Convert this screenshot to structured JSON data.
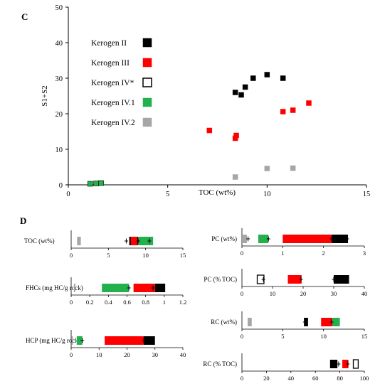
{
  "panel_c": {
    "letter": "C",
    "chart_data": {
      "type": "scatter",
      "xlabel": "TOC (wt%)",
      "ylabel": "S1+S2",
      "xlim": [
        0,
        15
      ],
      "ylim": [
        0,
        50
      ],
      "xticks": [
        0,
        5,
        10,
        15
      ],
      "yticks": [
        0,
        10,
        20,
        30,
        40,
        50
      ],
      "legend_position": "left",
      "series": [
        {
          "name": "Kerogen II",
          "color": "#000000",
          "marker": "filled-square",
          "x": [
            8.4,
            8.7,
            8.9,
            9.3,
            10.0,
            10.8
          ],
          "y": [
            26.0,
            25.3,
            27.5,
            30.0,
            31.0,
            30.0
          ]
        },
        {
          "name": "Kerogen III",
          "color": "#ff0000",
          "marker": "filled-square",
          "x": [
            7.1,
            8.4,
            8.45,
            10.8,
            11.3,
            12.1
          ],
          "y": [
            15.3,
            13.1,
            13.9,
            20.6,
            21.0,
            23.0
          ]
        },
        {
          "name": "Kerogen IV*",
          "color": "#000000",
          "marker": "open-square",
          "x": [],
          "y": []
        },
        {
          "name": "Kerogen IV.1",
          "color": "#22b14c",
          "marker": "filled-square",
          "x": [
            1.1,
            1.4,
            1.65
          ],
          "y": [
            0.3,
            0.4,
            0.5
          ]
        },
        {
          "name": "Kerogen IV.2",
          "color": "#a6a6a6",
          "marker": "filled-square",
          "x": [
            8.4,
            10.0,
            11.3
          ],
          "y": [
            2.2,
            4.6,
            4.7
          ]
        }
      ]
    }
  },
  "panel_d": {
    "letter": "D",
    "chart_data": [
      {
        "type": "bar",
        "orientation": "horizontal",
        "label": "TOC (wt%)",
        "xlim": [
          0,
          15
        ],
        "xticks": [
          0,
          5,
          10,
          15
        ],
        "segments": [
          {
            "color": "#a6a6a6",
            "start": 0.8,
            "end": 1.3
          },
          {
            "color": "#000000",
            "start": 7.8,
            "end": 9.0
          },
          {
            "color": "#ff0000",
            "start": 8.0,
            "end": 8.9
          },
          {
            "color": "#22b14c",
            "start": 9.0,
            "end": 11.0
          }
        ],
        "error_bars": [
          7.4,
          9.0,
          10.5
        ]
      },
      {
        "type": "bar",
        "orientation": "horizontal",
        "label": "FHCs (mg HC/g rock)",
        "xlim": [
          0,
          1.2
        ],
        "xticks": [
          0,
          0.2,
          0.4,
          0.6,
          0.8,
          1,
          1.2
        ],
        "segments": [
          {
            "color": "#a6a6a6",
            "start": 0.03,
            "end": 0.045
          },
          {
            "color": "#22b14c",
            "start": 0.33,
            "end": 0.62
          },
          {
            "color": "#ff0000",
            "start": 0.67,
            "end": 0.9
          },
          {
            "color": "#000000",
            "start": 0.9,
            "end": 1.01
          }
        ],
        "error_bars": [
          0.62,
          0.88
        ]
      },
      {
        "type": "bar",
        "orientation": "horizontal",
        "label": "HCP (mg HC/g rock)",
        "xlim": [
          0,
          40
        ],
        "xticks": [
          0,
          10,
          20,
          30,
          40
        ],
        "segments": [
          {
            "color": "#a6a6a6",
            "start": 0.2,
            "end": 0.6
          },
          {
            "color": "#22b14c",
            "start": 2.0,
            "end": 4.0
          },
          {
            "color": "#ff0000",
            "start": 12.0,
            "end": 26.0
          },
          {
            "color": "#000000",
            "start": 26.0,
            "end": 30.0
          }
        ],
        "error_bars": [
          4.0,
          26.0
        ]
      },
      {
        "type": "bar",
        "orientation": "horizontal",
        "label": "PC (wt%)",
        "xlim": [
          0,
          3
        ],
        "xticks": [
          0,
          1,
          2,
          3
        ],
        "segments": [
          {
            "color": "#a6a6a6",
            "start": 0.02,
            "end": 0.12
          },
          {
            "color": "#22b14c",
            "start": 0.4,
            "end": 0.65
          },
          {
            "color": "#ff0000",
            "start": 1.0,
            "end": 2.2
          },
          {
            "color": "#000000",
            "start": 2.2,
            "end": 2.6
          }
        ],
        "error_bars": [
          0.15,
          0.65,
          2.2,
          2.58
        ]
      },
      {
        "type": "bar",
        "orientation": "horizontal",
        "label": "PC (% TOC)",
        "xlim": [
          0,
          40
        ],
        "xticks": [
          0,
          10,
          20,
          30,
          40
        ],
        "segments": [
          {
            "color": "#ffffff",
            "outline": "#000000",
            "start": 5.0,
            "end": 7.2
          },
          {
            "color": "#ff0000",
            "start": 15.0,
            "end": 19.5
          },
          {
            "color": "#000000",
            "start": 30.0,
            "end": 35.0
          }
        ],
        "error_bars": [
          7.0,
          19.3,
          30.0
        ]
      },
      {
        "type": "bar",
        "orientation": "horizontal",
        "label": "RC (wt%)",
        "xlim": [
          0,
          15
        ],
        "xticks": [
          0,
          5,
          10,
          15
        ],
        "segments": [
          {
            "color": "#a6a6a6",
            "start": 0.7,
            "end": 1.2
          },
          {
            "color": "#000000",
            "start": 7.6,
            "end": 8.1
          },
          {
            "color": "#ff0000",
            "start": 9.7,
            "end": 11.1
          },
          {
            "color": "#22b14c",
            "start": 11.1,
            "end": 12.0
          }
        ],
        "error_bars": [
          7.7,
          11.0
        ]
      },
      {
        "type": "bar",
        "orientation": "horizontal",
        "label": "RC (% TOC)",
        "xlim": [
          0,
          100
        ],
        "xticks": [
          0,
          20,
          40,
          60,
          80,
          100
        ],
        "segments": [
          {
            "color": "#000000",
            "start": 72.0,
            "end": 78.0
          },
          {
            "color": "#ff0000",
            "start": 82.0,
            "end": 87.0
          },
          {
            "color": "#ffffff",
            "outline": "#000000",
            "start": 91.0,
            "end": 95.0
          }
        ],
        "error_bars": [
          79.0,
          86.5
        ]
      }
    ]
  }
}
